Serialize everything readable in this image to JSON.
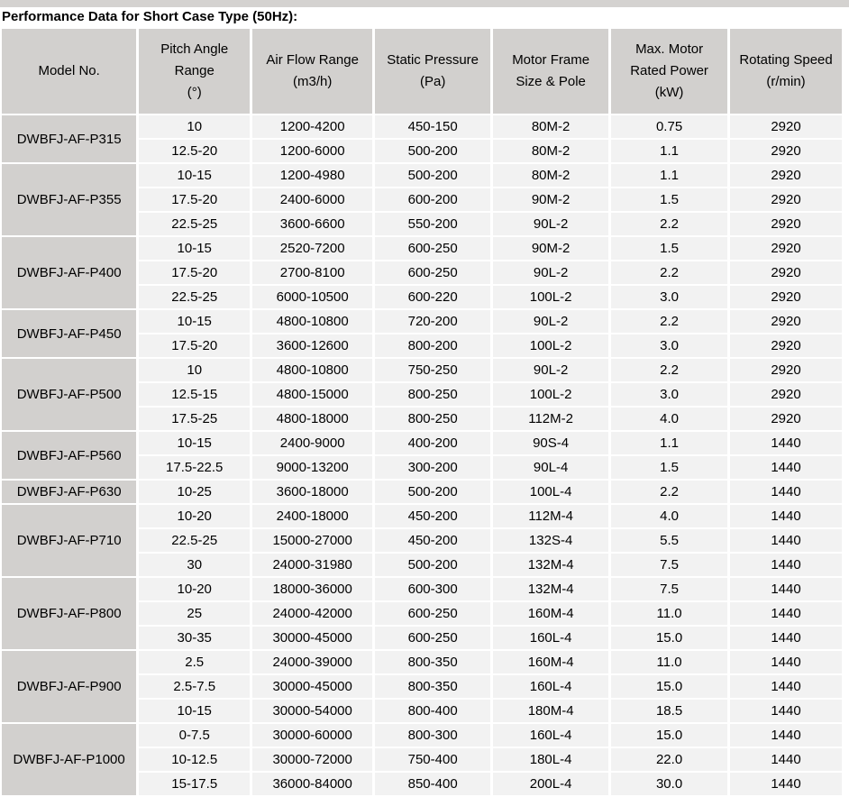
{
  "title": "Performance Data for Short Case Type (50Hz):",
  "colors": {
    "header_bg": "#d2d0ce",
    "model_cell_bg": "#d2d0ce",
    "data_cell_bg": "#f2f2f2",
    "gap": "#ffffff",
    "text": "#000000",
    "top_strip": "#d4d2d0"
  },
  "table": {
    "columns": [
      {
        "id": "model-no",
        "lines": [
          "Model No."
        ]
      },
      {
        "id": "pitch-angle-range",
        "lines": [
          "Pitch Angle",
          "Range",
          "(°)"
        ]
      },
      {
        "id": "air-flow-range",
        "lines": [
          "Air Flow Range",
          "(m3/h)"
        ]
      },
      {
        "id": "static-pressure",
        "lines": [
          "Static Pressure",
          "(Pa)"
        ]
      },
      {
        "id": "motor-frame",
        "lines": [
          "Motor Frame",
          "Size & Pole"
        ]
      },
      {
        "id": "max-motor-rated-power",
        "lines": [
          "Max. Motor",
          "Rated Power",
          "(kW)"
        ]
      },
      {
        "id": "rotating-speed",
        "lines": [
          "Rotating Speed",
          "(r/min)"
        ]
      }
    ],
    "groups": [
      {
        "model": "DWBFJ-AF-P315",
        "rows": [
          [
            "10",
            "1200-4200",
            "450-150",
            "80M-2",
            "0.75",
            "2920"
          ],
          [
            "12.5-20",
            "1200-6000",
            "500-200",
            "80M-2",
            "1.1",
            "2920"
          ]
        ]
      },
      {
        "model": "DWBFJ-AF-P355",
        "rows": [
          [
            "10-15",
            "1200-4980",
            "500-200",
            "80M-2",
            "1.1",
            "2920"
          ],
          [
            "17.5-20",
            "2400-6000",
            "600-200",
            "90M-2",
            "1.5",
            "2920"
          ],
          [
            "22.5-25",
            "3600-6600",
            "550-200",
            "90L-2",
            "2.2",
            "2920"
          ]
        ]
      },
      {
        "model": "DWBFJ-AF-P400",
        "rows": [
          [
            "10-15",
            "2520-7200",
            "600-250",
            "90M-2",
            "1.5",
            "2920"
          ],
          [
            "17.5-20",
            "2700-8100",
            "600-250",
            "90L-2",
            "2.2",
            "2920"
          ],
          [
            "22.5-25",
            "6000-10500",
            "600-220",
            "100L-2",
            "3.0",
            "2920"
          ]
        ]
      },
      {
        "model": "DWBFJ-AF-P450",
        "rows": [
          [
            "10-15",
            "4800-10800",
            "720-200",
            "90L-2",
            "2.2",
            "2920"
          ],
          [
            "17.5-20",
            "3600-12600",
            "800-200",
            "100L-2",
            "3.0",
            "2920"
          ]
        ]
      },
      {
        "model": "DWBFJ-AF-P500",
        "rows": [
          [
            "10",
            "4800-10800",
            "750-250",
            "90L-2",
            "2.2",
            "2920"
          ],
          [
            "12.5-15",
            "4800-15000",
            "800-250",
            "100L-2",
            "3.0",
            "2920"
          ],
          [
            "17.5-25",
            "4800-18000",
            "800-250",
            "112M-2",
            "4.0",
            "2920"
          ]
        ]
      },
      {
        "model": "DWBFJ-AF-P560",
        "rows": [
          [
            "10-15",
            "2400-9000",
            "400-200",
            "90S-4",
            "1.1",
            "1440"
          ],
          [
            "17.5-22.5",
            "9000-13200",
            "300-200",
            "90L-4",
            "1.5",
            "1440"
          ]
        ]
      },
      {
        "model": "DWBFJ-AF-P630",
        "rows": [
          [
            "10-25",
            "3600-18000",
            "500-200",
            "100L-4",
            "2.2",
            "1440"
          ]
        ]
      },
      {
        "model": "DWBFJ-AF-P710",
        "rows": [
          [
            "10-20",
            "2400-18000",
            "450-200",
            "112M-4",
            "4.0",
            "1440"
          ],
          [
            "22.5-25",
            "15000-27000",
            "450-200",
            "132S-4",
            "5.5",
            "1440"
          ],
          [
            "30",
            "24000-31980",
            "500-200",
            "132M-4",
            "7.5",
            "1440"
          ]
        ]
      },
      {
        "model": "DWBFJ-AF-P800",
        "rows": [
          [
            "10-20",
            "18000-36000",
            "600-300",
            "132M-4",
            "7.5",
            "1440"
          ],
          [
            "25",
            "24000-42000",
            "600-250",
            "160M-4",
            "11.0",
            "1440"
          ],
          [
            "30-35",
            "30000-45000",
            "600-250",
            "160L-4",
            "15.0",
            "1440"
          ]
        ]
      },
      {
        "model": "DWBFJ-AF-P900",
        "rows": [
          [
            "2.5",
            "24000-39000",
            "800-350",
            "160M-4",
            "11.0",
            "1440"
          ],
          [
            "2.5-7.5",
            "30000-45000",
            "800-350",
            "160L-4",
            "15.0",
            "1440"
          ],
          [
            "10-15",
            "30000-54000",
            "800-400",
            "180M-4",
            "18.5",
            "1440"
          ]
        ]
      },
      {
        "model": "DWBFJ-AF-P1000",
        "rows": [
          [
            "0-7.5",
            "30000-60000",
            "800-300",
            "160L-4",
            "15.0",
            "1440"
          ],
          [
            "10-12.5",
            "30000-72000",
            "750-400",
            "180L-4",
            "22.0",
            "1440"
          ],
          [
            "15-17.5",
            "36000-84000",
            "850-400",
            "200L-4",
            "30.0",
            "1440"
          ]
        ]
      }
    ]
  }
}
